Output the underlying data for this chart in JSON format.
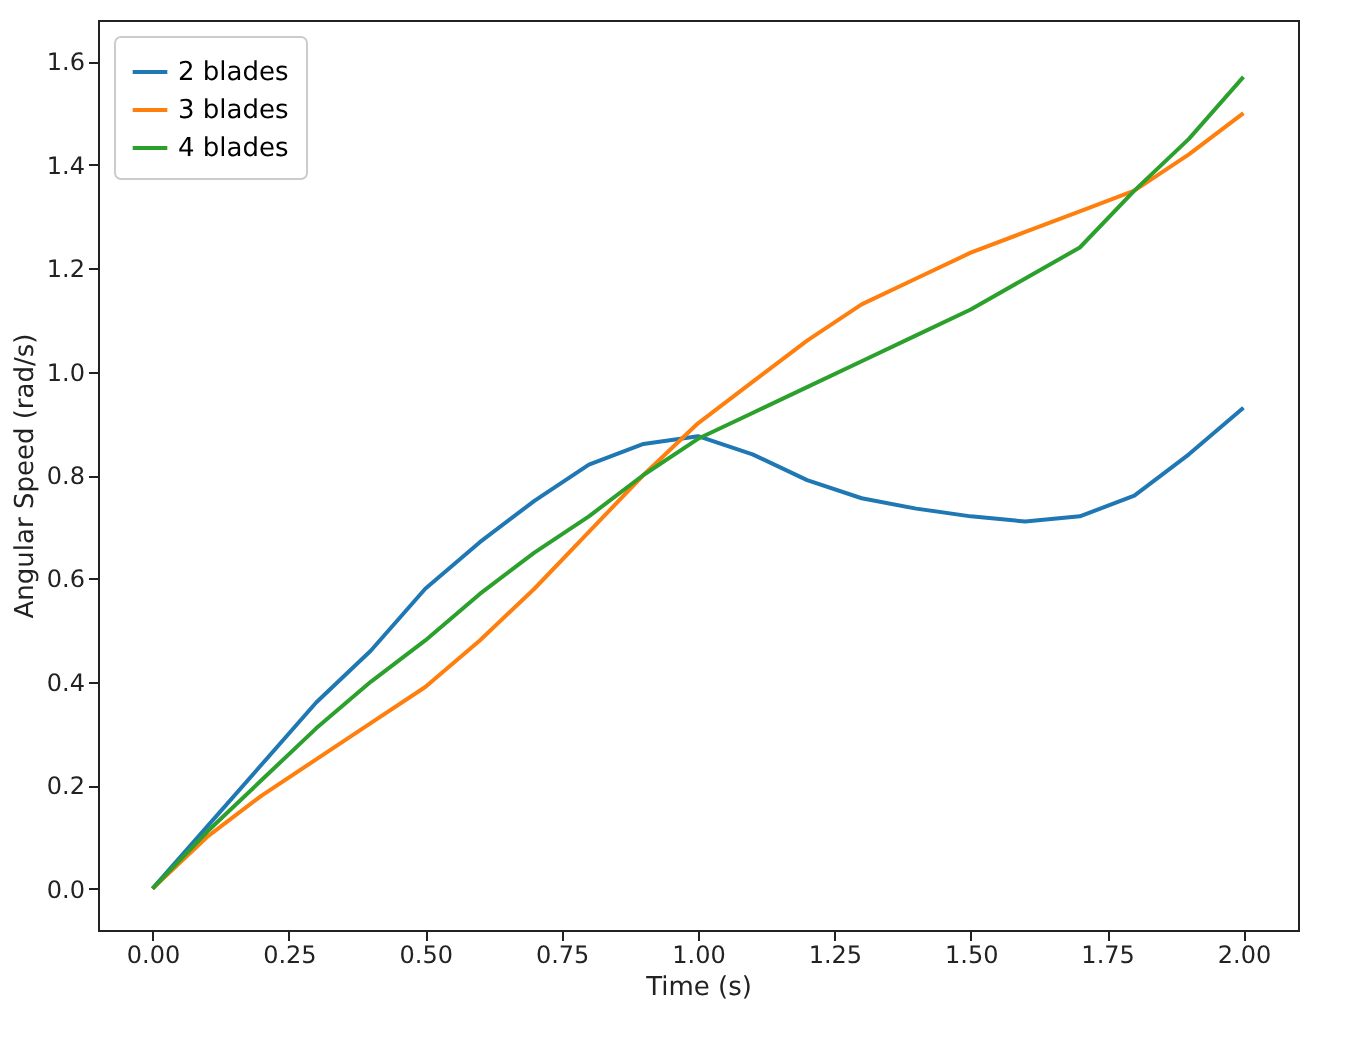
{
  "chart_data": {
    "type": "line",
    "xlabel": "Time (s)",
    "ylabel": "Angular Speed (rad/s)",
    "x": [
      0,
      0.1,
      0.2,
      0.3,
      0.4,
      0.5,
      0.6,
      0.7,
      0.8,
      0.9,
      1.0,
      1.1,
      1.2,
      1.3,
      1.4,
      1.5,
      1.6,
      1.7,
      1.8,
      1.9,
      2.0
    ],
    "series": [
      {
        "name": "2 blades",
        "color": "#1f77b4",
        "values": [
          0,
          0.12,
          0.24,
          0.36,
          0.46,
          0.58,
          0.67,
          0.75,
          0.82,
          0.86,
          0.875,
          0.84,
          0.79,
          0.755,
          0.735,
          0.72,
          0.71,
          0.72,
          0.76,
          0.84,
          0.93
        ]
      },
      {
        "name": "3 blades",
        "color": "#ff7f0e",
        "values": [
          0,
          0.1,
          0.18,
          0.25,
          0.32,
          0.39,
          0.48,
          0.58,
          0.69,
          0.8,
          0.9,
          0.98,
          1.06,
          1.13,
          1.18,
          1.23,
          1.27,
          1.31,
          1.35,
          1.42,
          1.5
        ]
      },
      {
        "name": "4 blades",
        "color": "#2ca02c",
        "values": [
          0,
          0.11,
          0.21,
          0.31,
          0.4,
          0.48,
          0.57,
          0.65,
          0.72,
          0.8,
          0.87,
          0.92,
          0.97,
          1.02,
          1.07,
          1.12,
          1.18,
          1.24,
          1.35,
          1.45,
          1.57
        ]
      }
    ],
    "xlim": [
      -0.1,
      2.1
    ],
    "xticks": [
      {
        "value": 0,
        "label": "0.00"
      },
      {
        "value": 0.25,
        "label": "0.25"
      },
      {
        "value": 0.5,
        "label": "0.50"
      },
      {
        "value": 0.75,
        "label": "0.75"
      },
      {
        "value": 1.0,
        "label": "1.00"
      },
      {
        "value": 1.25,
        "label": "1.25"
      },
      {
        "value": 1.5,
        "label": "1.50"
      },
      {
        "value": 1.75,
        "label": "1.75"
      },
      {
        "value": 2.0,
        "label": "2.00"
      }
    ],
    "ylim": [
      -0.08,
      1.68
    ],
    "yticks": [
      {
        "value": 0,
        "label": "0.0"
      },
      {
        "value": 0.2,
        "label": "0.2"
      },
      {
        "value": 0.4,
        "label": "0.4"
      },
      {
        "value": 0.6,
        "label": "0.6"
      },
      {
        "value": 0.8,
        "label": "0.8"
      },
      {
        "value": 1.0,
        "label": "1.0"
      },
      {
        "value": 1.2,
        "label": "1.2"
      },
      {
        "value": 1.4,
        "label": "1.4"
      },
      {
        "value": 1.6,
        "label": "1.6"
      }
    ],
    "legend": "top left",
    "grid": false,
    "line_style": "solid",
    "marker": "none"
  }
}
